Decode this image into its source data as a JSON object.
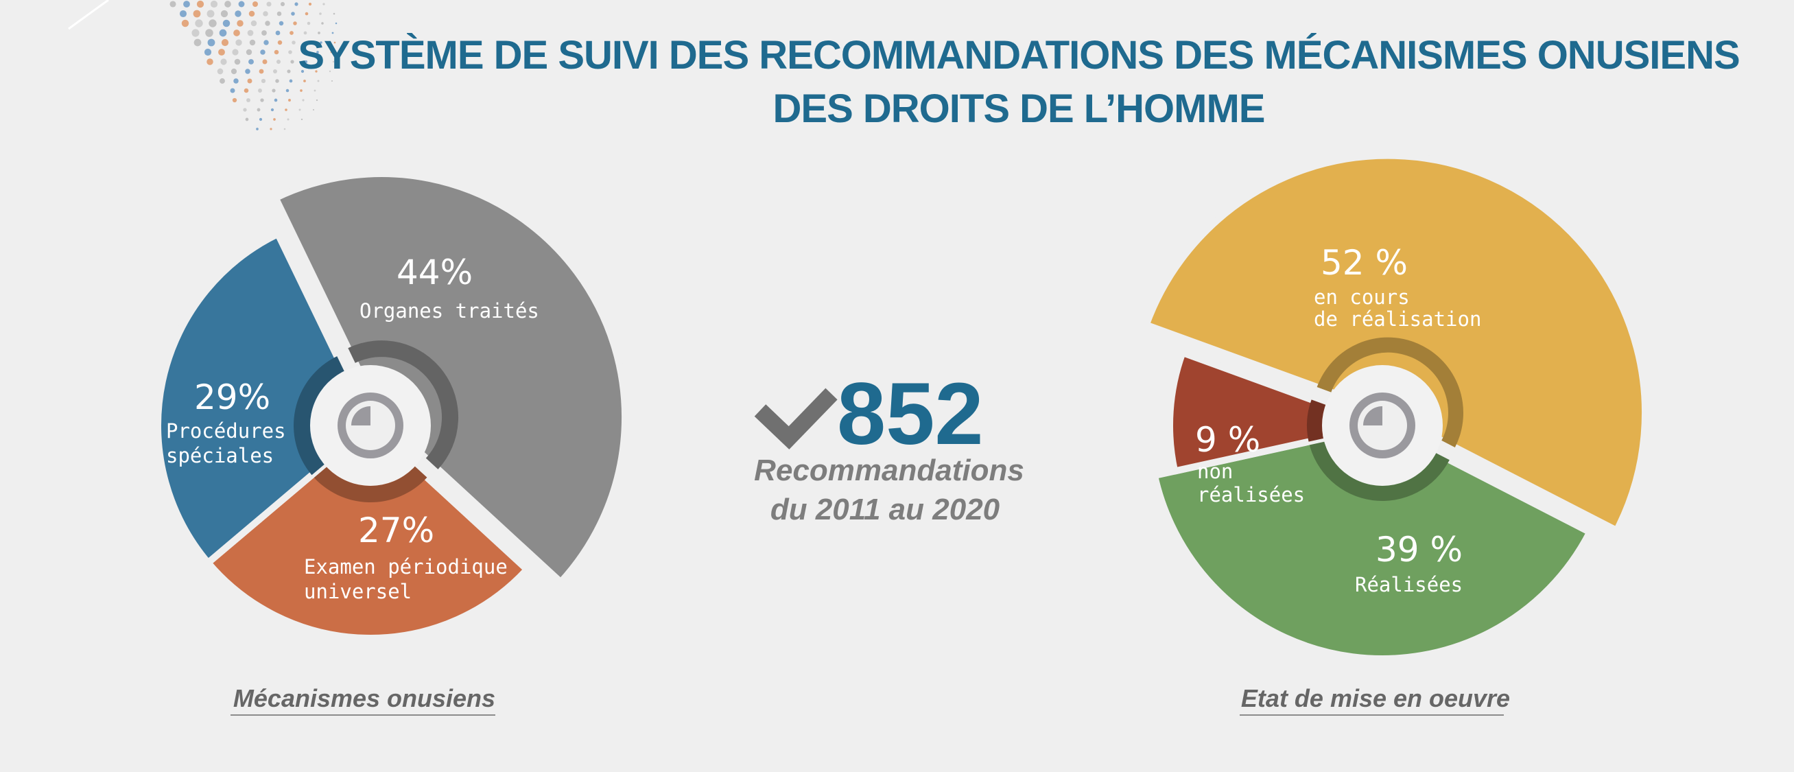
{
  "header": {
    "title_line1": "SYSTÈME DE SUIVI DES RECOMMANDATIONS DES MÉCANISMES ONUSIENS",
    "title_line2": "DES DROITS DE L’HOMME"
  },
  "total": {
    "value": "852",
    "caption_line1": "Recommandations",
    "caption_line2": "du 2011 au 2020",
    "icon": "check-icon"
  },
  "chart_data": [
    {
      "type": "pie",
      "title": "Mécanismes onusiens",
      "unit": "%",
      "slices": [
        {
          "pct": "44%",
          "label_lines": [
            "Organes traités"
          ],
          "value": 44,
          "color": "#8b8b8b"
        },
        {
          "pct": "27%",
          "label_lines": [
            "Examen périodique",
            "universel"
          ],
          "value": 27,
          "color": "#cb6e46"
        },
        {
          "pct": "29%",
          "label_lines": [
            "Procédures",
            "spéciales"
          ],
          "value": 29,
          "color": "#38769c"
        }
      ],
      "center_icon": "clock-icon"
    },
    {
      "type": "pie",
      "title": "Etat de mise en oeuvre",
      "unit": "%",
      "slices": [
        {
          "pct": "52 %",
          "label_lines": [
            "en cours",
            "de réalisation"
          ],
          "value": 52,
          "color": "#e2b04e"
        },
        {
          "pct": "39 %",
          "label_lines": [
            "Réalisées"
          ],
          "value": 39,
          "color": "#6fa05f"
        },
        {
          "pct": "9 %",
          "label_lines": [
            "non",
            "réalisées"
          ],
          "value": 9,
          "color": "#a0442f"
        }
      ],
      "center_icon": "clock-icon"
    }
  ]
}
